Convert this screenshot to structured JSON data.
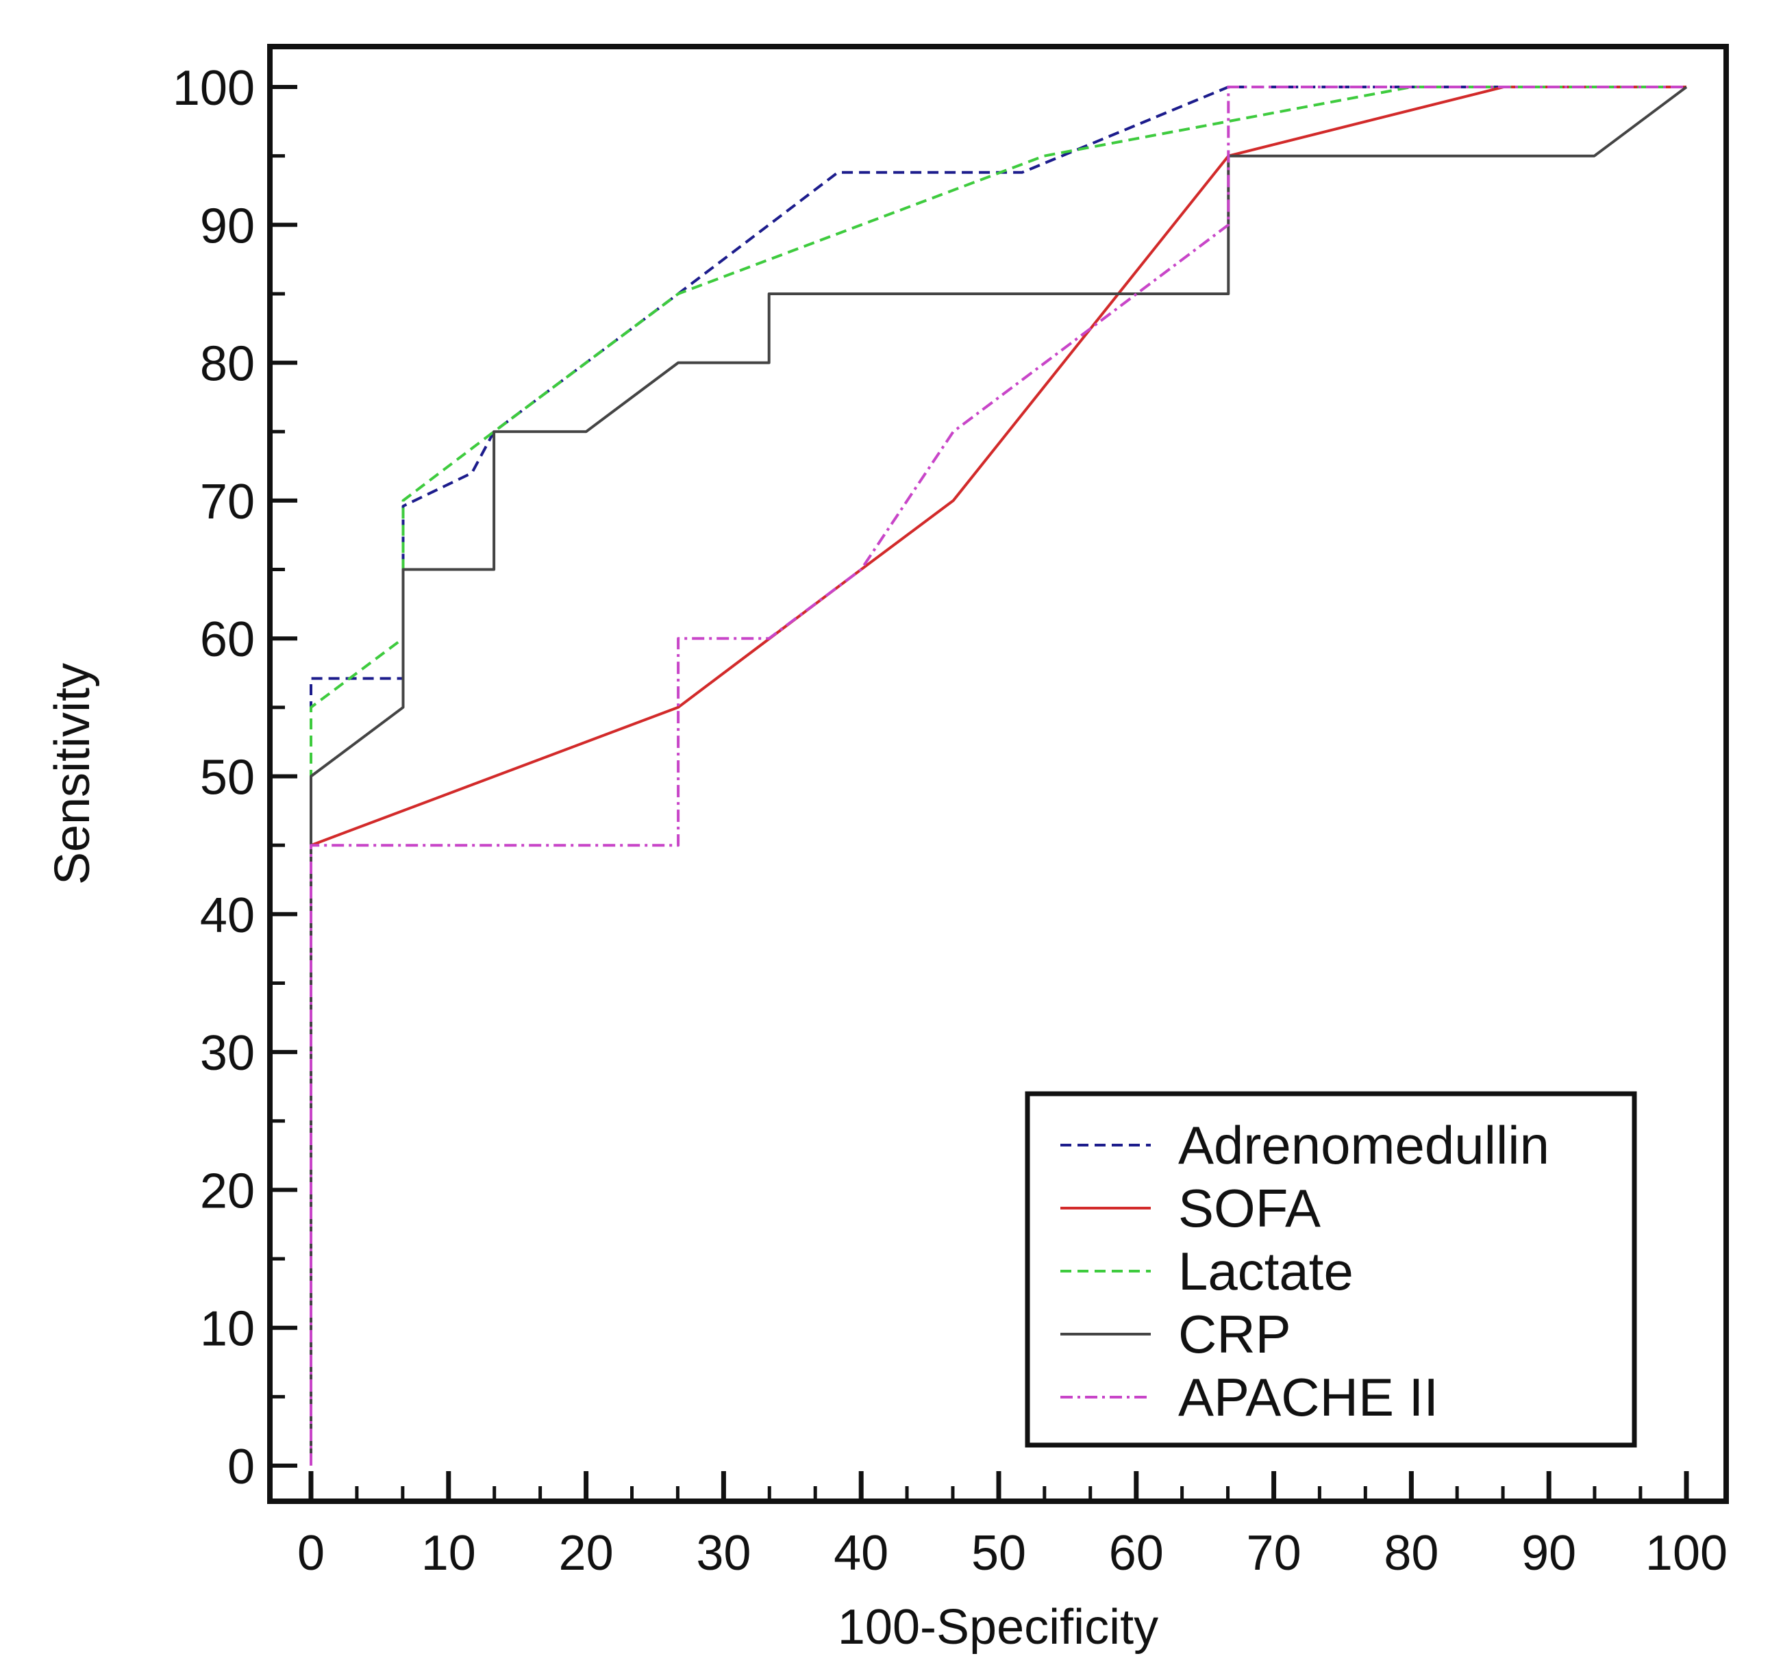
{
  "chart_data": {
    "type": "line",
    "xlabel": "100-Specificity",
    "ylabel": "Sensitivity",
    "xlim": [
      -3,
      103
    ],
    "ylim": [
      -3,
      103
    ],
    "x_ticks": [
      0,
      10,
      20,
      30,
      40,
      50,
      60,
      70,
      80,
      90,
      100
    ],
    "y_ticks": [
      0,
      10,
      20,
      30,
      40,
      50,
      60,
      70,
      80,
      90,
      100
    ],
    "x_minor_step": 3.333,
    "y_minor_step": 5,
    "grid": false,
    "legend_position": "bottom-right",
    "series": [
      {
        "name": "Adrenomedullin",
        "color": "#1c1c8c",
        "dash": "dashed",
        "points": [
          [
            0,
            0
          ],
          [
            0,
            57.1
          ],
          [
            6.7,
            57.1
          ],
          [
            6.7,
            69.6
          ],
          [
            11.7,
            72
          ],
          [
            13.3,
            75
          ],
          [
            26.7,
            85
          ],
          [
            38.3,
            93.8
          ],
          [
            51.7,
            93.8
          ],
          [
            66.7,
            100
          ],
          [
            100,
            100
          ]
        ]
      },
      {
        "name": "SOFA",
        "color": "#d22a2a",
        "dash": "solid",
        "points": [
          [
            0,
            0
          ],
          [
            0,
            45
          ],
          [
            26.7,
            55
          ],
          [
            40,
            65
          ],
          [
            46.7,
            70
          ],
          [
            66.7,
            95
          ],
          [
            86.7,
            100
          ],
          [
            100,
            100
          ]
        ]
      },
      {
        "name": "Lactate",
        "color": "#3ecb3e",
        "dash": "dashed",
        "points": [
          [
            0,
            0
          ],
          [
            0,
            55
          ],
          [
            6.7,
            60
          ],
          [
            6.7,
            70
          ],
          [
            13.3,
            75
          ],
          [
            26.7,
            85
          ],
          [
            53.3,
            95
          ],
          [
            80,
            100
          ],
          [
            100,
            100
          ]
        ]
      },
      {
        "name": "CRP",
        "color": "#444444",
        "dash": "solid",
        "points": [
          [
            0,
            0
          ],
          [
            0,
            50
          ],
          [
            6.7,
            55
          ],
          [
            6.7,
            65
          ],
          [
            13.3,
            65
          ],
          [
            13.3,
            75
          ],
          [
            20,
            75
          ],
          [
            26.7,
            80
          ],
          [
            33.3,
            80
          ],
          [
            33.3,
            85
          ],
          [
            66.7,
            85
          ],
          [
            66.7,
            95
          ],
          [
            93.3,
            95
          ],
          [
            100,
            100
          ]
        ]
      },
      {
        "name": "APACHE II",
        "color": "#c845c8",
        "dash": "dashdot",
        "points": [
          [
            0,
            0
          ],
          [
            0,
            45
          ],
          [
            26.7,
            45
          ],
          [
            26.7,
            60
          ],
          [
            33.3,
            60
          ],
          [
            40,
            65
          ],
          [
            46.7,
            75
          ],
          [
            66.7,
            90
          ],
          [
            66.7,
            100
          ],
          [
            100,
            100
          ]
        ]
      }
    ]
  }
}
